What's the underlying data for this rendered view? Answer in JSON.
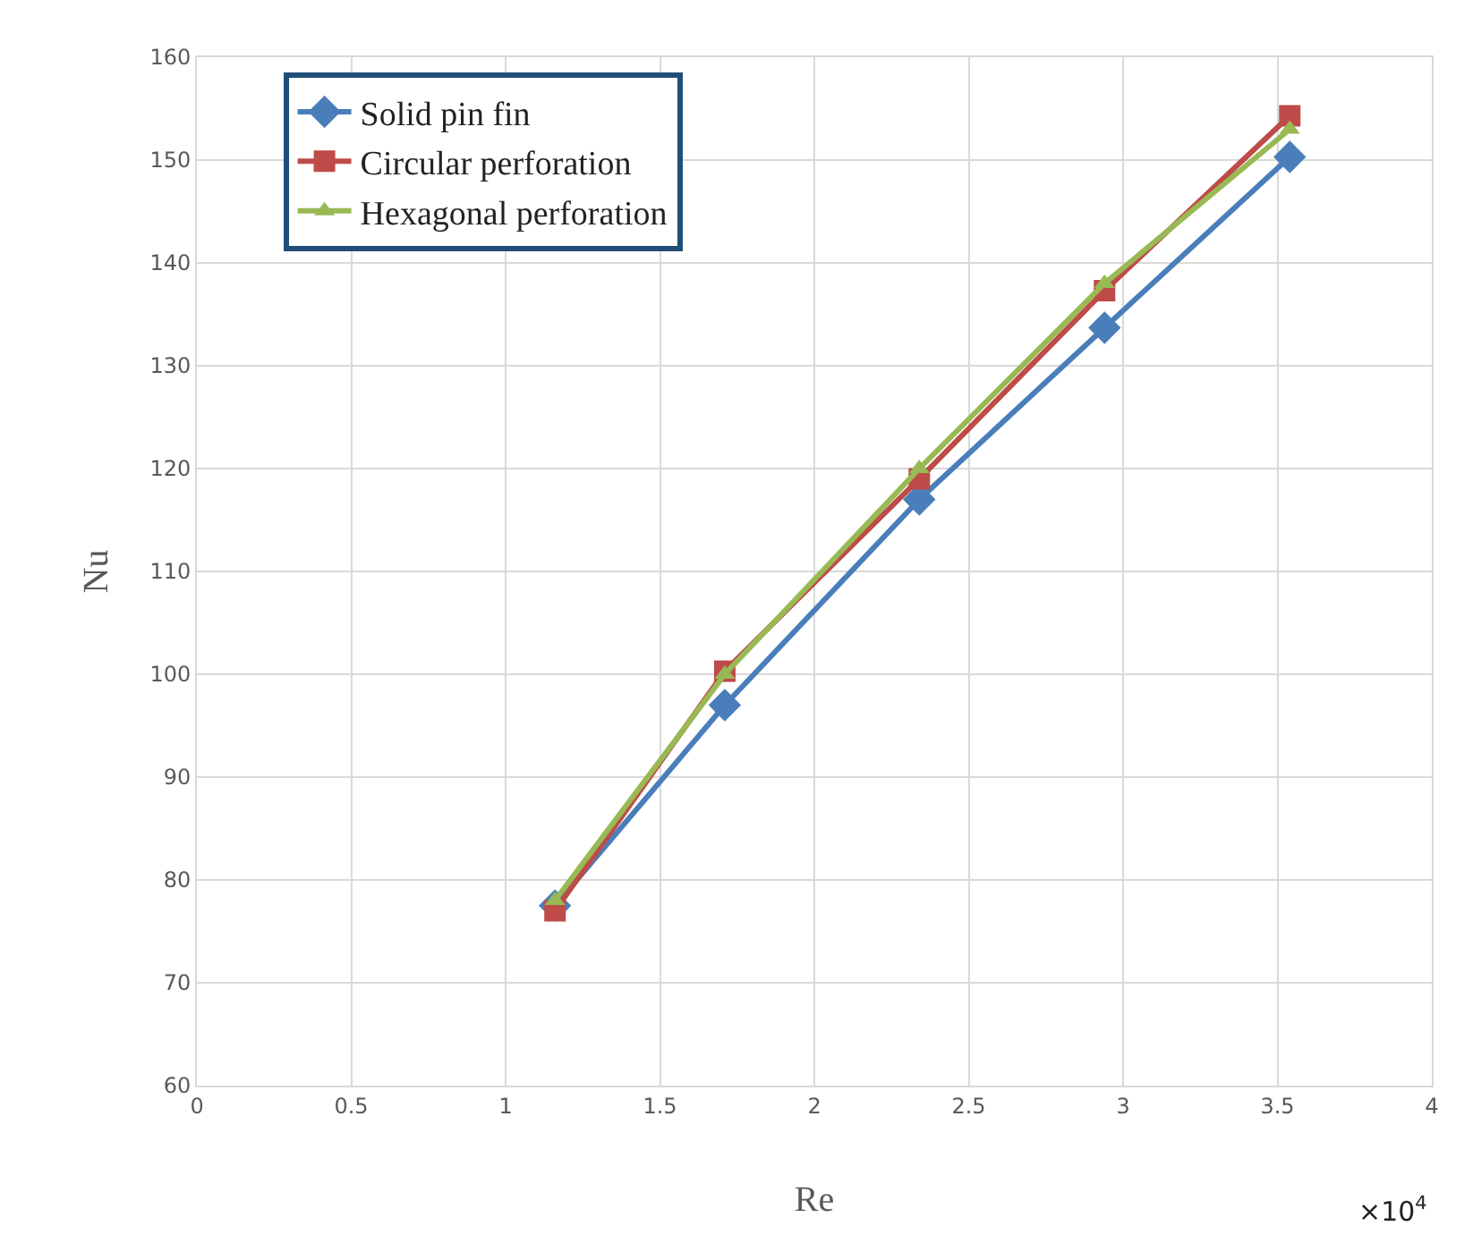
{
  "chart_data": {
    "type": "line",
    "xlabel": "Re",
    "ylabel": "Nu",
    "annotations": [
      "×10$^{4}$"
    ],
    "x": [
      1.16,
      1.71,
      2.34,
      2.94,
      3.54
    ],
    "series": [
      {
        "name": "Solid pin fin",
        "color": "#4a7ebb",
        "marker": "diamond",
        "values": [
          77.5,
          97,
          117,
          133.7,
          150.3
        ]
      },
      {
        "name": "Circular perforation",
        "color": "#be4b48",
        "marker": "square",
        "values": [
          77,
          100.3,
          119,
          137.3,
          154.3
        ]
      },
      {
        "name": "Hexagonal perforation",
        "color": "#98b954",
        "marker": "triangle",
        "values": [
          78,
          100,
          120,
          138,
          153
        ]
      }
    ],
    "xlim": [
      0,
      4
    ],
    "xticks": [
      0,
      0.5,
      1,
      1.5,
      2,
      2.5,
      3,
      3.5,
      4
    ],
    "ylim": [
      60,
      160
    ],
    "yticks": [
      60,
      70,
      80,
      90,
      100,
      110,
      120,
      130,
      140,
      150,
      160
    ],
    "grid": true,
    "legend": "top left"
  }
}
